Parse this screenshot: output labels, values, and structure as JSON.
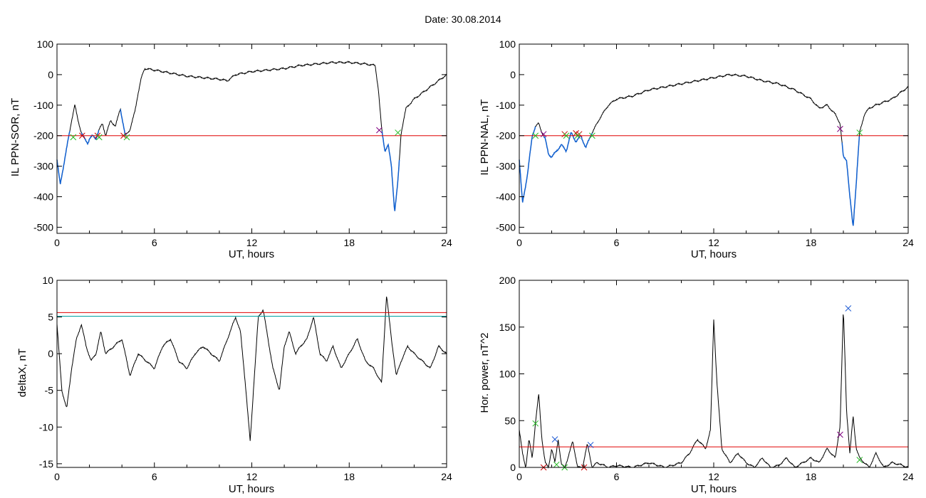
{
  "figure_title": "Date:  30.08.2014",
  "colors": {
    "trace": "#000000",
    "threshold": "#e00000",
    "secondary_threshold": "#00a0a0",
    "event_segment": "#1060d0",
    "marker_red": "#cc0000",
    "marker_green": "#22bb22",
    "marker_blue": "#1050d0",
    "marker_purple": "#800080"
  },
  "chart_data": [
    {
      "id": "il_sor",
      "type": "line",
      "xlabel": "UT, hours",
      "ylabel": "IL PPN-SOR, nT",
      "xlim": [
        0,
        24
      ],
      "ylim": [
        -520,
        100
      ],
      "xticks": [
        0,
        6,
        12,
        18,
        24
      ],
      "yticks": [
        100,
        0,
        -100,
        -200,
        -300,
        -400,
        -500
      ],
      "threshold": -200,
      "grid": false,
      "series": [
        {
          "x": [
            0,
            0.2,
            0.4,
            0.5,
            0.7,
            0.9,
            1.1,
            1.3,
            1.5,
            1.7,
            1.9,
            2.0,
            2.2,
            2.4,
            2.6,
            2.8,
            3.0,
            3.3,
            3.6,
            3.9,
            4.2,
            4.5,
            4.8,
            5.0,
            5.2,
            5.4,
            6,
            7,
            8,
            9,
            10,
            10.5,
            11,
            12,
            13,
            14,
            15,
            16,
            17,
            18,
            19,
            19.6,
            19.8,
            20.0,
            20.2,
            20.4,
            20.6,
            20.8,
            21.0,
            21.2,
            21.5,
            22,
            22.5,
            23,
            23.5,
            24
          ],
          "y": [
            -280,
            -360,
            -300,
            -270,
            -210,
            -150,
            -100,
            -150,
            -190,
            -210,
            -225,
            -210,
            -200,
            -210,
            -180,
            -160,
            -200,
            -150,
            -170,
            -110,
            -200,
            -180,
            -120,
            -60,
            -10,
            20,
            15,
            5,
            -5,
            -10,
            -15,
            -20,
            0,
            10,
            15,
            20,
            30,
            35,
            40,
            40,
            35,
            30,
            -50,
            -180,
            -250,
            -230,
            -300,
            -450,
            -350,
            -190,
            -110,
            -80,
            -60,
            -40,
            -20,
            0
          ]
        }
      ],
      "event_intervals": [
        [
          0,
          0.8
        ],
        [
          1.5,
          2.6
        ],
        [
          3.9,
          4.3
        ],
        [
          20.0,
          21.1
        ]
      ],
      "markers": [
        {
          "x": 1.55,
          "y": -200,
          "color": "red"
        },
        {
          "x": 2.5,
          "y": -200,
          "color": "red"
        },
        {
          "x": 4.1,
          "y": -200,
          "color": "red"
        },
        {
          "x": 19.85,
          "y": -182,
          "color": "purple"
        },
        {
          "x": 1.0,
          "y": -205,
          "color": "green"
        },
        {
          "x": 2.6,
          "y": -205,
          "color": "green"
        },
        {
          "x": 4.3,
          "y": -205,
          "color": "green"
        },
        {
          "x": 21.0,
          "y": -190,
          "color": "green"
        }
      ]
    },
    {
      "id": "il_nal",
      "type": "line",
      "xlabel": "UT, hours",
      "ylabel": "IL PPN-NAL, nT",
      "xlim": [
        0,
        24
      ],
      "ylim": [
        -520,
        100
      ],
      "xticks": [
        0,
        6,
        12,
        18,
        24
      ],
      "yticks": [
        100,
        0,
        -100,
        -200,
        -300,
        -400,
        -500
      ],
      "threshold": -200,
      "grid": false,
      "series": [
        {
          "x": [
            0,
            0.2,
            0.5,
            0.8,
            1.0,
            1.2,
            1.4,
            1.6,
            1.8,
            2.0,
            2.3,
            2.6,
            2.9,
            3.2,
            3.5,
            3.8,
            4.1,
            4.4,
            4.6,
            5.0,
            5.5,
            6,
            7,
            8,
            9,
            10,
            11,
            12,
            13,
            14,
            15,
            16,
            17,
            18,
            18.5,
            19,
            19.5,
            19.8,
            20.0,
            20.2,
            20.4,
            20.6,
            20.8,
            21.0,
            21.3,
            21.6,
            22,
            22.5,
            23,
            23.5,
            24
          ],
          "y": [
            -280,
            -420,
            -330,
            -200,
            -170,
            -160,
            -190,
            -210,
            -260,
            -270,
            -250,
            -230,
            -250,
            -190,
            -220,
            -200,
            -240,
            -200,
            -180,
            -140,
            -100,
            -80,
            -70,
            -50,
            -40,
            -30,
            -20,
            -10,
            0,
            -5,
            -20,
            -30,
            -50,
            -80,
            -110,
            -100,
            -130,
            -160,
            -270,
            -280,
            -400,
            -500,
            -350,
            -190,
            -130,
            -110,
            -100,
            -90,
            -80,
            -60,
            -40
          ]
        }
      ],
      "event_intervals": [
        [
          0,
          1.0
        ],
        [
          1.5,
          4.5
        ],
        [
          19.9,
          21.0
        ]
      ],
      "markers": [
        {
          "x": 1.5,
          "y": -195,
          "color": "purple"
        },
        {
          "x": 2.8,
          "y": -195,
          "color": "red"
        },
        {
          "x": 3.5,
          "y": -192,
          "color": "red"
        },
        {
          "x": 3.7,
          "y": -195,
          "color": "red"
        },
        {
          "x": 19.8,
          "y": -178,
          "color": "purple"
        },
        {
          "x": 1.0,
          "y": -200,
          "color": "green"
        },
        {
          "x": 2.9,
          "y": -200,
          "color": "green"
        },
        {
          "x": 3.6,
          "y": -200,
          "color": "green"
        },
        {
          "x": 4.5,
          "y": -200,
          "color": "green"
        },
        {
          "x": 21.0,
          "y": -190,
          "color": "green"
        }
      ]
    },
    {
      "id": "deltax",
      "type": "line",
      "xlabel": "UT, hours",
      "ylabel": "deltaX, nT",
      "xlim": [
        0,
        24
      ],
      "ylim": [
        -15.5,
        10
      ],
      "xticks": [
        0,
        6,
        12,
        18,
        24
      ],
      "yticks": [
        10,
        5,
        0,
        -5,
        -10,
        -15
      ],
      "threshold": 5.6,
      "secondary_threshold": 5.1,
      "grid": false,
      "series": [
        {
          "x": [
            0,
            0.3,
            0.6,
            0.9,
            1.2,
            1.5,
            1.8,
            2.1,
            2.4,
            2.7,
            3.0,
            3.5,
            4,
            4.5,
            5,
            5.5,
            6,
            6.5,
            7,
            7.5,
            8,
            8.5,
            9,
            9.5,
            10,
            10.5,
            11,
            11.3,
            11.6,
            11.9,
            12.1,
            12.4,
            12.7,
            13.0,
            13.3,
            13.7,
            14.0,
            14.3,
            14.7,
            15.0,
            15.4,
            15.8,
            16.2,
            16.6,
            17.0,
            17.5,
            18,
            18.5,
            19,
            19.5,
            20,
            20.3,
            20.6,
            20.9,
            21.2,
            21.6,
            22,
            22.5,
            23,
            23.5,
            24
          ],
          "y": [
            4,
            -5,
            -7.5,
            -2,
            2,
            4,
            1,
            -1,
            0,
            3,
            0,
            1,
            2,
            -3,
            0,
            -1,
            -2,
            1,
            2,
            -1,
            -2,
            0,
            1,
            0,
            -1,
            2,
            5,
            3,
            -4,
            -12,
            -5,
            5,
            6,
            2,
            -2,
            -5,
            1,
            3,
            0,
            1,
            2,
            5,
            0,
            -1,
            1,
            -2,
            0,
            2,
            -1,
            -2,
            -4,
            8,
            2,
            -3,
            -1,
            1,
            0,
            -1,
            -2,
            1,
            0
          ]
        }
      ]
    },
    {
      "id": "hor_power",
      "type": "line",
      "xlabel": "UT, hours",
      "ylabel": "Hor. power, nT^2",
      "xlim": [
        0,
        24
      ],
      "ylim": [
        0,
        200
      ],
      "xticks": [
        0,
        6,
        12,
        18,
        24
      ],
      "yticks": [
        200,
        150,
        100,
        50,
        0
      ],
      "threshold": 22,
      "grid": false,
      "series": [
        {
          "x": [
            0,
            0.2,
            0.4,
            0.6,
            0.8,
            1.0,
            1.2,
            1.4,
            1.6,
            1.8,
            2.0,
            2.2,
            2.4,
            2.6,
            2.8,
            3.0,
            3.3,
            3.6,
            3.9,
            4.2,
            4.5,
            4.8,
            5.1,
            5.5,
            6,
            7,
            8,
            9,
            10,
            10.5,
            11,
            11.5,
            11.8,
            12.0,
            12.2,
            12.5,
            13,
            13.5,
            14,
            14.5,
            15,
            15.5,
            16,
            16.5,
            17,
            17.5,
            18,
            18.5,
            19,
            19.5,
            19.8,
            20.0,
            20.2,
            20.4,
            20.6,
            20.8,
            21.0,
            21.3,
            21.6,
            22,
            22.5,
            23,
            23.5,
            24
          ],
          "y": [
            40,
            15,
            0,
            30,
            10,
            48,
            78,
            30,
            5,
            0,
            20,
            5,
            30,
            3,
            0,
            10,
            28,
            0,
            0,
            25,
            0,
            5,
            3,
            0,
            2,
            0,
            5,
            0,
            5,
            15,
            30,
            20,
            40,
            158,
            90,
            20,
            5,
            15,
            5,
            0,
            10,
            0,
            2,
            10,
            0,
            5,
            10,
            5,
            20,
            10,
            45,
            170,
            60,
            15,
            55,
            20,
            10,
            5,
            0,
            15,
            0,
            5,
            3,
            0
          ]
        }
      ],
      "markers": [
        {
          "x": 1.0,
          "y": 47,
          "color": "green"
        },
        {
          "x": 2.3,
          "y": 3,
          "color": "green"
        },
        {
          "x": 2.8,
          "y": 0,
          "color": "green"
        },
        {
          "x": 2.2,
          "y": 30,
          "color": "blue"
        },
        {
          "x": 4.4,
          "y": 24,
          "color": "blue"
        },
        {
          "x": 20.3,
          "y": 170,
          "color": "blue"
        },
        {
          "x": 1.5,
          "y": 0,
          "color": "red"
        },
        {
          "x": 4.0,
          "y": 0,
          "color": "red"
        },
        {
          "x": 19.8,
          "y": 35,
          "color": "purple"
        },
        {
          "x": 21.0,
          "y": 8,
          "color": "green"
        }
      ]
    }
  ]
}
